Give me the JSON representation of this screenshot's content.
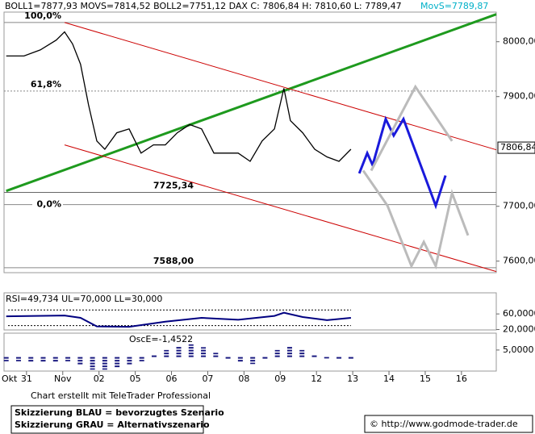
{
  "header": {
    "text": "BOLL1=7877,93 MOVS=7814,52 BOLL2=7751,12 DAX C: 7806,84 H: 7810,60 L: 7789,47",
    "movs": "MovS=7789,87"
  },
  "chart_data": [
    {
      "type": "line",
      "xlim": [
        -0.62,
        12.96
      ],
      "ylim": [
        7579,
        8054
      ],
      "yticks": [
        {
          "value": 8000,
          "label": "8000,00"
        },
        {
          "value": 7900,
          "label": "7900,00"
        },
        {
          "value": 7700,
          "label": "7700,00"
        },
        {
          "value": 7600,
          "label": "7600,00"
        }
      ],
      "month_label": "Okt",
      "xticks": [
        {
          "value": 0,
          "label": "31"
        },
        {
          "value": 1,
          "label": "Nov"
        },
        {
          "value": 2,
          "label": "02"
        },
        {
          "value": 3,
          "label": "05"
        },
        {
          "value": 4,
          "label": "06"
        },
        {
          "value": 5,
          "label": "07"
        },
        {
          "value": 6,
          "label": "08"
        },
        {
          "value": 7,
          "label": "09"
        },
        {
          "value": 8,
          "label": "12"
        },
        {
          "value": 9,
          "label": "13"
        },
        {
          "value": 10,
          "label": "14"
        },
        {
          "value": 11,
          "label": "15"
        },
        {
          "value": 12,
          "label": "16"
        }
      ],
      "last_price": {
        "value": 7806.84,
        "label": "7806,84"
      },
      "levels": [
        {
          "value": 8035,
          "label": "100,0%",
          "color": "#888888",
          "style": "solid"
        },
        {
          "value": 7910,
          "label": "61,8%",
          "color": "#888888",
          "style": "dotted"
        },
        {
          "value": 7725.34,
          "label": "7725,34",
          "color": "#666666",
          "style": "solid"
        },
        {
          "value": 7703,
          "label": "0,0%",
          "color": "#888888",
          "style": "solid"
        },
        {
          "value": 7588,
          "label": "7588,00",
          "color": "#888888",
          "style": "solid"
        }
      ],
      "trend_lines": [
        {
          "color": "#1e9a1e",
          "x": [
            -0.56,
            12.96
          ],
          "values": [
            7728,
            8050
          ]
        },
        {
          "color": "#cc0000",
          "x": [
            1.05,
            12.96
          ],
          "values": [
            8035,
            7803
          ]
        },
        {
          "color": "#cc0000",
          "x": [
            1.05,
            12.96
          ],
          "values": [
            7812,
            7581
          ]
        }
      ],
      "series": [
        {
          "color": "#000000",
          "x": [
            -0.56,
            -0.07,
            0.38,
            0.82,
            1.05,
            1.27,
            1.49,
            1.71,
            1.94,
            2.16,
            2.49,
            2.83,
            3.16,
            3.5,
            3.83,
            4.16,
            4.5,
            4.83,
            5.17,
            5.5,
            5.84,
            6.17,
            6.5,
            6.84,
            7.1,
            7.28,
            7.62,
            7.95,
            8.29,
            8.62,
            8.95
          ],
          "values": [
            7974,
            7974,
            7985,
            8003,
            8018,
            7996,
            7959,
            7885,
            7819,
            7804,
            7834,
            7841,
            7797,
            7812,
            7812,
            7834,
            7849,
            7841,
            7797,
            7797,
            7797,
            7782,
            7819,
            7841,
            7915,
            7856,
            7834,
            7804,
            7790,
            7782,
            7804
          ]
        },
        {
          "color": "#1a1adb",
          "x": [
            9.18,
            9.4,
            9.55,
            9.91,
            10.13,
            10.4,
            11.29,
            11.56
          ],
          "values": [
            7760,
            7797,
            7775,
            7859,
            7829,
            7859,
            7701,
            7756
          ]
        },
        {
          "color": "#bbbbbb",
          "x": [
            9.51,
            10.73,
            11.74
          ],
          "values": [
            7765,
            7918,
            7819
          ]
        },
        {
          "color": "#bbbbbb",
          "x": [
            9.29,
            9.96,
            10.62,
            10.96,
            11.29,
            11.74,
            12.18
          ],
          "values": [
            7765,
            7701,
            7591,
            7635,
            7591,
            7724,
            7647
          ]
        }
      ]
    },
    {
      "type": "line",
      "label": "RSI=49,734 UL=70,000 LL=30,000",
      "ylim": [
        19,
        114
      ],
      "yticks": [
        {
          "value": 60,
          "label": "60,0000"
        },
        {
          "value": 20,
          "label": "20,0000"
        }
      ],
      "levels": [
        70,
        30
      ],
      "series": [
        {
          "color": "#000080",
          "x": [
            -0.56,
            1.05,
            1.49,
            1.94,
            2.83,
            3.83,
            4.83,
            5.84,
            6.84,
            7.1,
            7.62,
            8.29,
            8.95
          ],
          "values": [
            54,
            56,
            50,
            28,
            27,
            40,
            50,
            45,
            55,
            63,
            52,
            44,
            50
          ]
        }
      ]
    },
    {
      "type": "bar",
      "label": "OscE=-1,4522",
      "ylim": [
        -10,
        17
      ],
      "yticks": [
        {
          "value": 5,
          "label": "5,0000"
        }
      ],
      "color": "#1a1a80",
      "x": [
        -0.56,
        -0.22,
        0.12,
        0.46,
        0.8,
        1.14,
        1.48,
        1.82,
        2.16,
        2.5,
        2.84,
        3.18,
        3.52,
        3.86,
        4.2,
        4.54,
        4.88,
        5.22,
        5.56,
        5.9,
        6.24,
        6.58,
        6.92,
        7.26,
        7.6,
        7.94,
        8.28,
        8.62,
        8.95
      ],
      "values": [
        -3,
        -3,
        -3.5,
        -4,
        -4,
        -3,
        -6,
        -9,
        -9,
        -8,
        -6,
        -3,
        2,
        5,
        8,
        9,
        7,
        3,
        -2,
        -4,
        -5,
        -2,
        5,
        8,
        5,
        2,
        -1,
        -2,
        -1.45
      ]
    }
  ],
  "footer": {
    "credit": "Chart erstellt mit TeleTrader Professional",
    "blue": "Skizzierung BLAU = bevorzugtes Szenario",
    "grey": "Skizzierung GRAU = Alternativszenario",
    "url": "© http://www.godmode-trader.de"
  }
}
